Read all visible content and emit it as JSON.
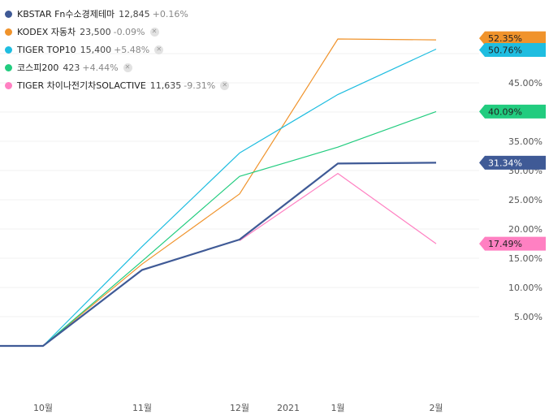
{
  "legend": [
    {
      "name": "KBSTAR Fn수소경제테마",
      "price": "12,845",
      "change": "+0.16%",
      "color": "#3f5a96",
      "closable": false
    },
    {
      "name": "KODEX 자동차",
      "price": "23,500",
      "change": "-0.09%",
      "color": "#f0932b",
      "closable": true
    },
    {
      "name": "TIGER TOP10",
      "price": "15,400",
      "change": "+5.48%",
      "color": "#1fbde0",
      "closable": true
    },
    {
      "name": "코스피200",
      "price": "423",
      "change": "+4.44%",
      "color": "#22cc7f",
      "closable": true
    },
    {
      "name": "TIGER 차이나전기차SOLACTIVE",
      "price": "11,635",
      "change": "-9.31%",
      "color": "#ff80c2",
      "closable": true
    }
  ],
  "chart_data": {
    "type": "line",
    "x": [
      "2020-09-30",
      "2020-10-01",
      "2020-10-31",
      "2020-11-30",
      "2020-12-31",
      "2021-01-29"
    ],
    "x_ticks": [
      "10월",
      "11월",
      "12월",
      "2021",
      "1월",
      "2월"
    ],
    "y_ticks": [
      "5.00%",
      "10.00%",
      "15.00%",
      "20.00%",
      "25.00%",
      "30.00%",
      "35.00%",
      "40.00%",
      "45.00%",
      "50.00%"
    ],
    "ylim": [
      -5,
      55
    ],
    "grid": true,
    "legend_position": "top-left",
    "series": [
      {
        "name": "KODEX 자동차",
        "color": "#f0932b",
        "width": 1.2,
        "values": [
          0,
          0,
          14,
          26,
          52.5,
          52.35
        ],
        "last_label": "52.35%"
      },
      {
        "name": "TIGER TOP10",
        "color": "#1fbde0",
        "width": 1.2,
        "values": [
          0,
          0,
          17,
          33,
          43,
          50.76
        ],
        "last_label": "50.76%"
      },
      {
        "name": "코스피200",
        "color": "#22cc7f",
        "width": 1.2,
        "values": [
          0,
          0,
          14.5,
          29,
          34,
          40.09
        ],
        "last_label": "40.09%"
      },
      {
        "name": "TIGER 차이나전기차SOLACTIVE",
        "color": "#ff80c2",
        "width": 1.2,
        "values": [
          null,
          null,
          null,
          18,
          29.5,
          17.49
        ],
        "last_label": "17.49%"
      },
      {
        "name": "KBSTAR Fn수소경제테마",
        "color": "#3f5a96",
        "width": 2.2,
        "values": [
          0,
          0,
          13,
          18.2,
          31.2,
          31.34
        ],
        "last_label": "31.34%"
      }
    ]
  }
}
